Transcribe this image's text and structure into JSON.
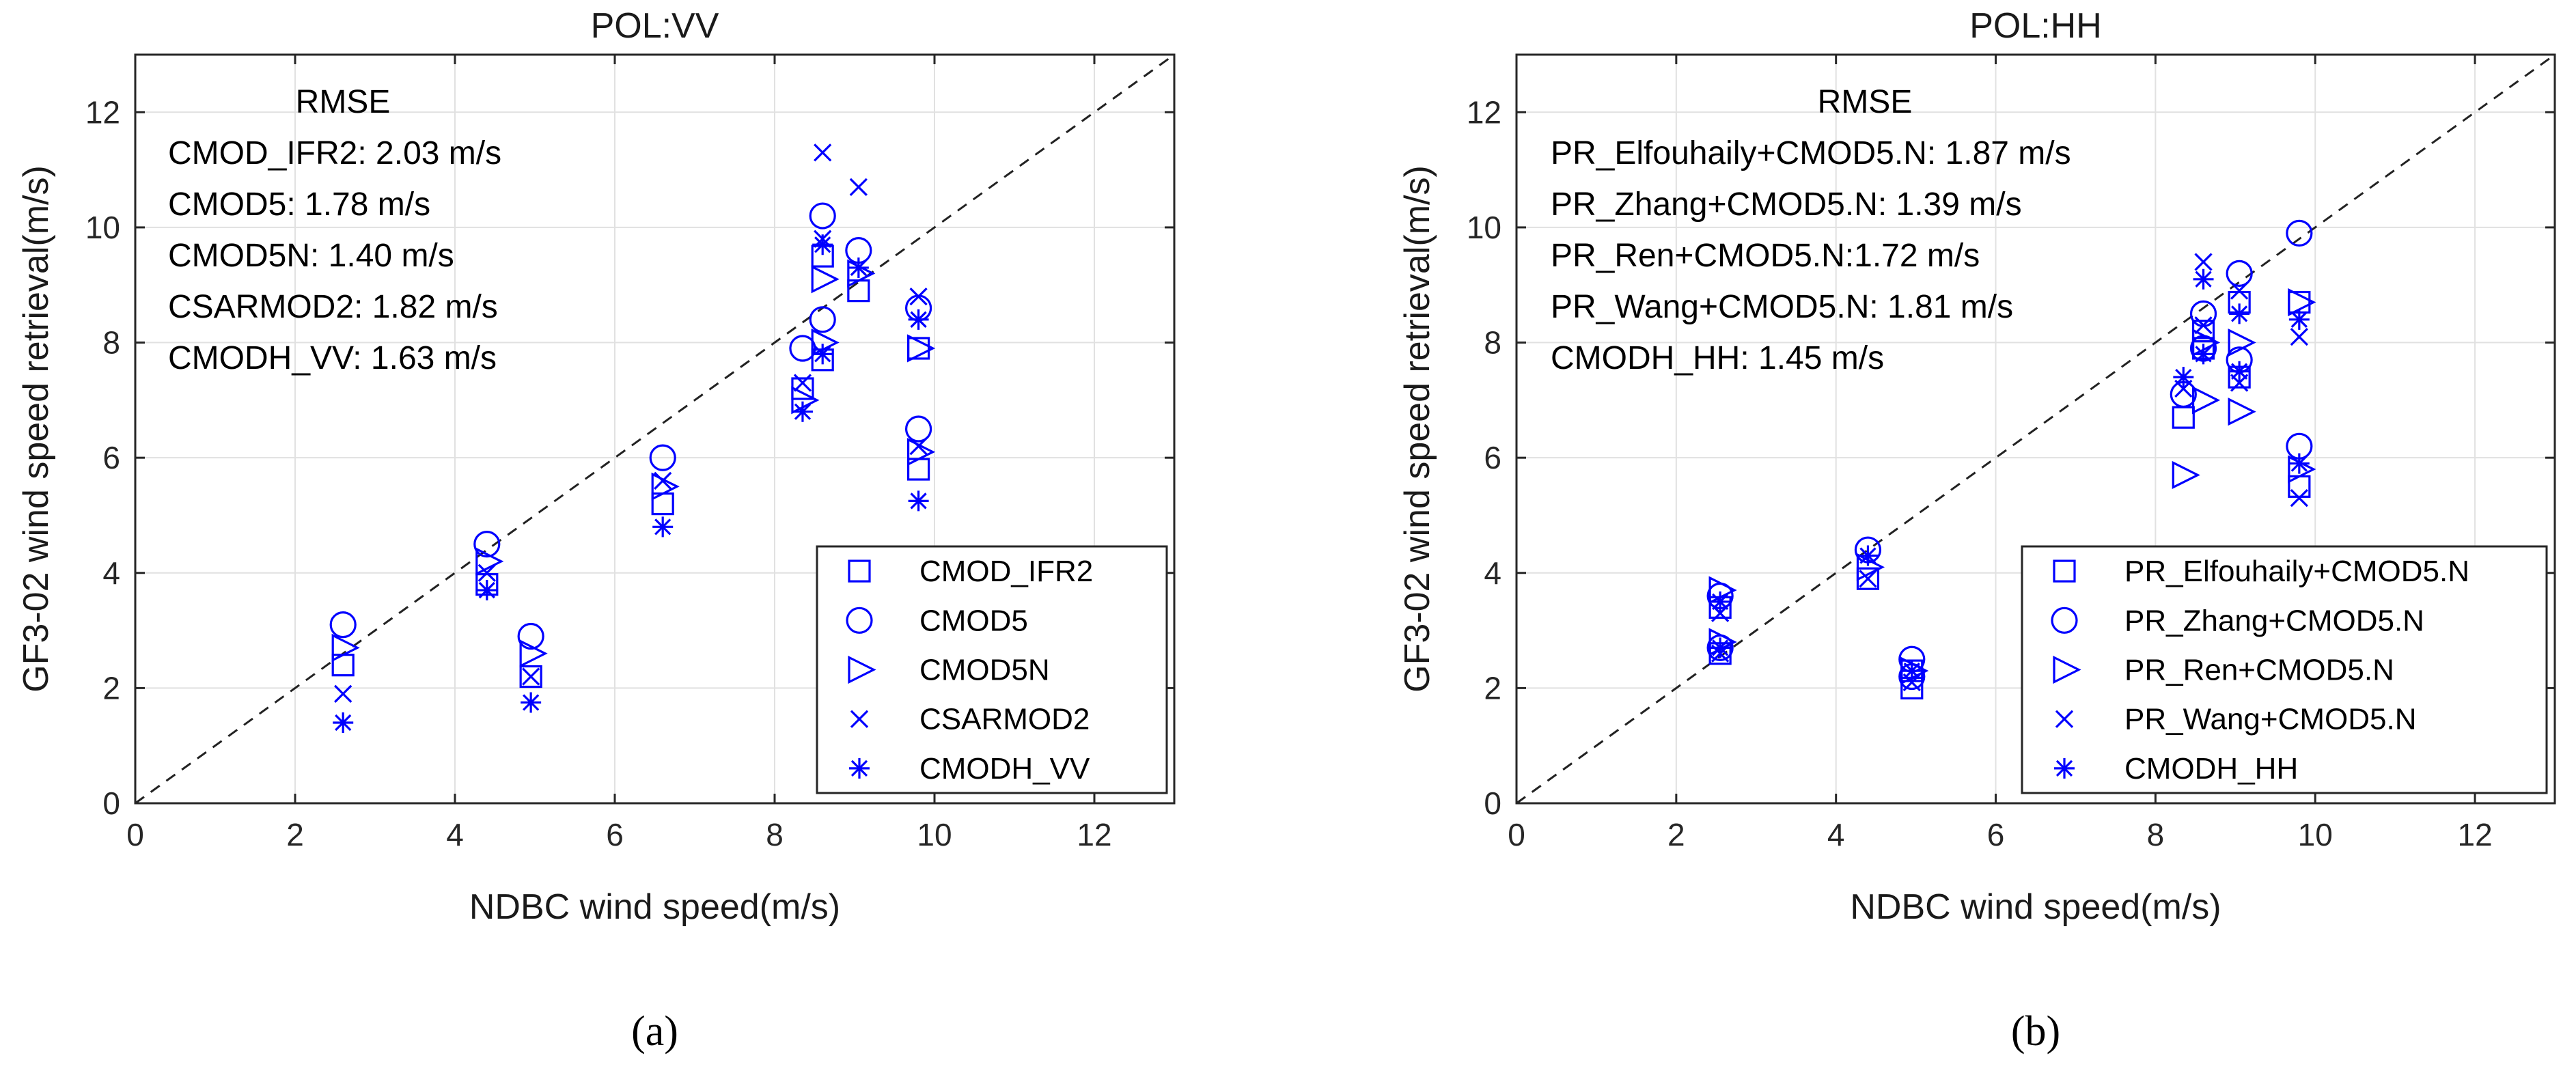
{
  "chart_data": [
    {
      "type": "scatter",
      "panel_label": "(a)",
      "title": "POL:VV",
      "xlabel": "NDBC wind speed(m/s)",
      "ylabel": "GF3-02 wind speed retrieval(m/s)",
      "xlim": [
        0,
        13
      ],
      "ylim": [
        0,
        13
      ],
      "xticks": [
        0,
        2,
        4,
        6,
        8,
        10,
        12
      ],
      "yticks": [
        0,
        2,
        4,
        6,
        8,
        10,
        12
      ],
      "grid": true,
      "reference_line": "y = x (dashed)",
      "legend_position": "bottom-right",
      "rmse_title": "RMSE",
      "rmse_lines": [
        "CMOD_IFR2: 2.03 m/s",
        "CMOD5: 1.78 m/s",
        "CMOD5N: 1.40 m/s",
        "CSARMOD2: 1.82 m/s",
        "CMODH_VV: 1.63 m/s"
      ],
      "color": "#0000ff",
      "series": [
        {
          "name": "CMOD_IFR2",
          "marker": "square",
          "points": [
            [
              2.6,
              2.4
            ],
            [
              4.4,
              3.8
            ],
            [
              4.95,
              2.2
            ],
            [
              6.6,
              5.2
            ],
            [
              8.35,
              7.2
            ],
            [
              8.6,
              7.7
            ],
            [
              8.6,
              9.5
            ],
            [
              9.05,
              8.9
            ],
            [
              9.8,
              7.9
            ],
            [
              9.8,
              5.8
            ]
          ]
        },
        {
          "name": "CMOD5",
          "marker": "circle",
          "points": [
            [
              2.6,
              3.1
            ],
            [
              4.4,
              4.5
            ],
            [
              4.95,
              2.9
            ],
            [
              6.6,
              6.0
            ],
            [
              8.35,
              7.9
            ],
            [
              8.6,
              8.4
            ],
            [
              8.6,
              10.2
            ],
            [
              9.05,
              9.6
            ],
            [
              9.8,
              8.6
            ],
            [
              9.8,
              6.5
            ]
          ]
        },
        {
          "name": "CMOD5N",
          "marker": "triangle-right",
          "points": [
            [
              2.6,
              2.7
            ],
            [
              4.4,
              4.2
            ],
            [
              4.95,
              2.6
            ],
            [
              6.6,
              5.5
            ],
            [
              8.35,
              7.0
            ],
            [
              8.6,
              8.0
            ],
            [
              8.6,
              9.1
            ],
            [
              9.05,
              9.2
            ],
            [
              9.8,
              7.9
            ],
            [
              9.8,
              6.1
            ]
          ]
        },
        {
          "name": "CSARMOD2",
          "marker": "x",
          "points": [
            [
              2.6,
              1.9
            ],
            [
              4.4,
              4.0
            ],
            [
              4.95,
              2.2
            ],
            [
              6.6,
              5.6
            ],
            [
              8.35,
              7.3
            ],
            [
              8.6,
              11.3
            ],
            [
              8.6,
              9.8
            ],
            [
              9.05,
              10.7
            ],
            [
              9.8,
              8.8
            ],
            [
              9.8,
              6.2
            ]
          ]
        },
        {
          "name": "CMODH_VV",
          "marker": "asterisk",
          "points": [
            [
              2.6,
              1.4
            ],
            [
              4.4,
              3.7
            ],
            [
              4.95,
              1.75
            ],
            [
              6.6,
              4.8
            ],
            [
              8.35,
              6.8
            ],
            [
              8.6,
              7.8
            ],
            [
              8.6,
              9.7
            ],
            [
              9.05,
              9.3
            ],
            [
              9.8,
              8.4
            ],
            [
              9.8,
              5.25
            ]
          ]
        }
      ]
    },
    {
      "type": "scatter",
      "panel_label": "(b)",
      "title": "POL:HH",
      "xlabel": "NDBC wind speed(m/s)",
      "ylabel": "GF3-02 wind speed retrieval(m/s)",
      "xlim": [
        0,
        13
      ],
      "ylim": [
        0,
        13
      ],
      "xticks": [
        0,
        2,
        4,
        6,
        8,
        10,
        12
      ],
      "yticks": [
        0,
        2,
        4,
        6,
        8,
        10,
        12
      ],
      "grid": true,
      "reference_line": "y = x (dashed)",
      "legend_position": "bottom-right",
      "rmse_title": "RMSE",
      "rmse_lines": [
        "PR_Elfouhaily+CMOD5.N: 1.87 m/s",
        "PR_Zhang+CMOD5.N: 1.39 m/s",
        "PR_Ren+CMOD5.N:1.72 m/s",
        "PR_Wang+CMOD5.N: 1.81 m/s",
        "CMODH_HH: 1.45 m/s"
      ],
      "color": "#0000ff",
      "series": [
        {
          "name": "PR_Elfouhaily+CMOD5.N",
          "marker": "square",
          "points": [
            [
              2.55,
              2.6
            ],
            [
              2.55,
              3.4
            ],
            [
              4.4,
              3.9
            ],
            [
              4.95,
              2.0
            ],
            [
              4.95,
              2.3
            ],
            [
              8.35,
              6.7
            ],
            [
              8.6,
              7.9
            ],
            [
              8.6,
              8.2
            ],
            [
              9.05,
              8.7
            ],
            [
              9.05,
              7.4
            ],
            [
              9.8,
              8.7
            ],
            [
              9.8,
              5.5
            ]
          ]
        },
        {
          "name": "PR_Zhang+CMOD5.N",
          "marker": "circle",
          "points": [
            [
              2.55,
              2.7
            ],
            [
              2.55,
              3.6
            ],
            [
              4.4,
              4.4
            ],
            [
              4.95,
              2.5
            ],
            [
              4.95,
              2.2
            ],
            [
              8.35,
              7.1
            ],
            [
              8.6,
              8.5
            ],
            [
              8.6,
              7.9
            ],
            [
              9.05,
              9.2
            ],
            [
              9.05,
              7.7
            ],
            [
              9.8,
              9.9
            ],
            [
              9.8,
              6.2
            ]
          ]
        },
        {
          "name": "PR_Ren+CMOD5.N",
          "marker": "triangle-right",
          "points": [
            [
              2.55,
              2.8
            ],
            [
              2.55,
              3.7
            ],
            [
              4.4,
              4.1
            ],
            [
              4.95,
              2.3
            ],
            [
              8.35,
              5.7
            ],
            [
              8.6,
              7.0
            ],
            [
              8.6,
              8.0
            ],
            [
              9.05,
              6.8
            ],
            [
              9.05,
              8.0
            ],
            [
              9.8,
              8.7
            ],
            [
              9.8,
              5.8
            ]
          ]
        },
        {
          "name": "PR_Wang+CMOD5.N",
          "marker": "x",
          "points": [
            [
              2.55,
              2.6
            ],
            [
              2.55,
              3.3
            ],
            [
              4.4,
              3.9
            ],
            [
              4.95,
              2.1
            ],
            [
              8.35,
              7.2
            ],
            [
              8.6,
              9.4
            ],
            [
              8.6,
              8.3
            ],
            [
              9.05,
              8.9
            ],
            [
              9.05,
              7.3
            ],
            [
              9.8,
              8.1
            ],
            [
              9.8,
              5.3
            ]
          ]
        },
        {
          "name": "CMODH_HH",
          "marker": "asterisk",
          "points": [
            [
              2.55,
              2.7
            ],
            [
              2.55,
              3.5
            ],
            [
              4.4,
              4.3
            ],
            [
              4.95,
              2.3
            ],
            [
              8.35,
              7.4
            ],
            [
              8.6,
              9.1
            ],
            [
              8.6,
              7.8
            ],
            [
              9.05,
              8.5
            ],
            [
              9.05,
              7.5
            ],
            [
              9.8,
              8.4
            ],
            [
              9.8,
              5.9
            ]
          ]
        }
      ]
    }
  ]
}
